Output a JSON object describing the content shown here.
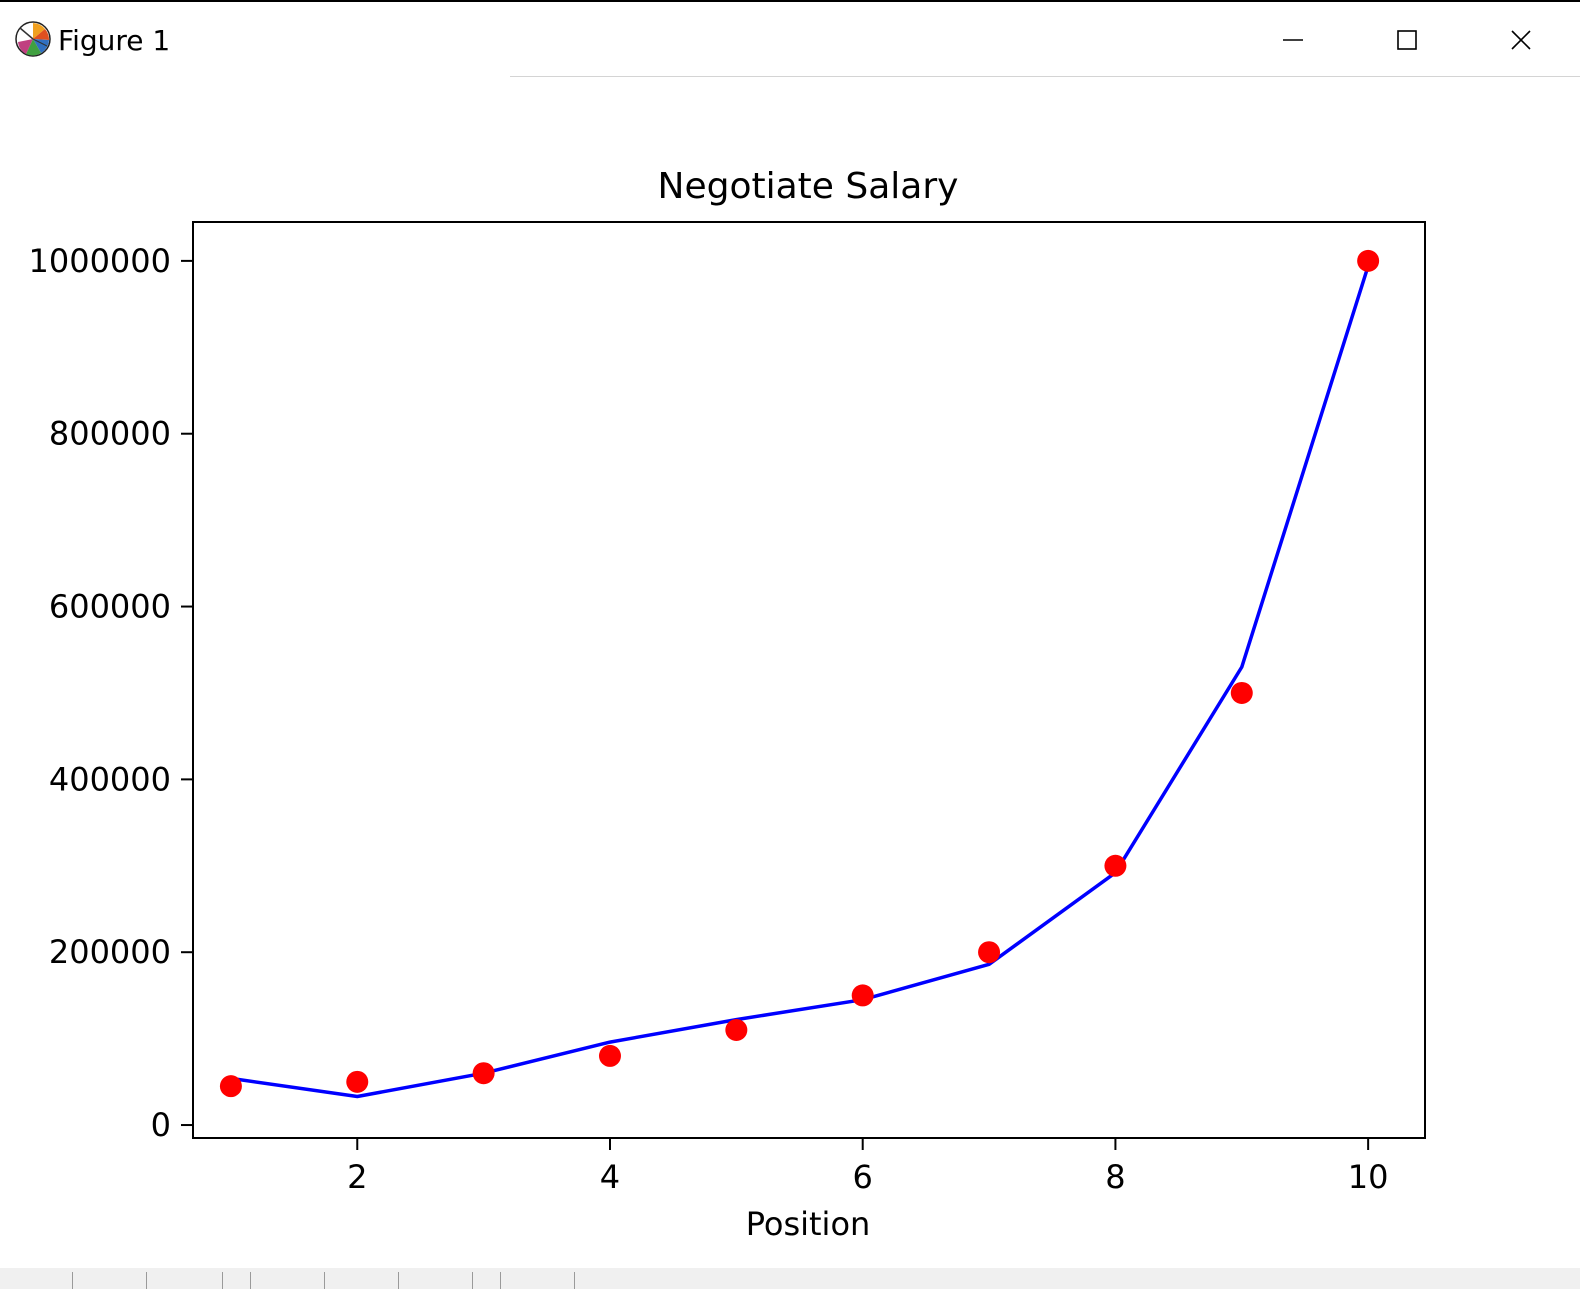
{
  "window": {
    "title": "Figure 1",
    "icon": "matplotlib-icon",
    "controls": [
      "minimize-icon",
      "maximize-icon",
      "close-icon"
    ]
  },
  "chart_data": {
    "type": "scatter",
    "title": "Negotiate Salary",
    "xlabel": "Position",
    "ylabel": "",
    "xlim": [
      0.7,
      10.45
    ],
    "ylim": [
      -15000,
      1045000
    ],
    "x_ticks": [
      2,
      4,
      6,
      8,
      10
    ],
    "y_ticks": [
      0,
      200000,
      400000,
      600000,
      800000,
      1000000
    ],
    "grid": false,
    "series": [
      {
        "type": "scatter",
        "color": "#ff0000",
        "x": [
          1,
          2,
          3,
          4,
          5,
          6,
          7,
          8,
          9,
          10
        ],
        "y": [
          45000,
          50000,
          60000,
          80000,
          110000,
          150000,
          200000,
          300000,
          500000,
          1000000
        ]
      },
      {
        "type": "line",
        "color": "#0000ff",
        "x": [
          1,
          2,
          3,
          4,
          5,
          6,
          7,
          8,
          9,
          10
        ],
        "y": [
          54000,
          33000,
          60000,
          96000,
          122000,
          145000,
          186000,
          292000,
          530000,
          994000
        ]
      }
    ]
  }
}
